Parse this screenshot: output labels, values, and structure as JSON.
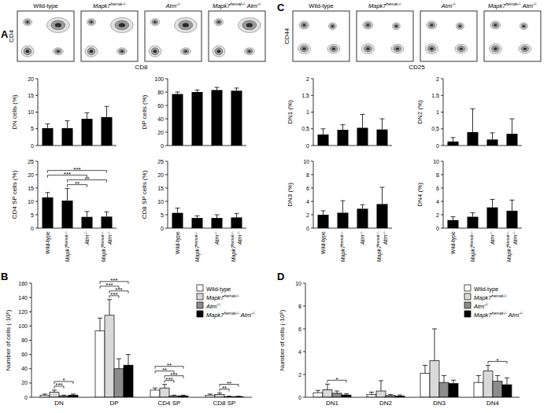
{
  "panels": [
    "A",
    "B",
    "C",
    "D"
  ],
  "dot_plots": [
    {
      "titles": [
        "Wild-type",
        "Mapk7hemat-/-",
        "Atm-/-",
        "Mapk7hemat-/- Atm-/-"
      ],
      "x_label": "CD8",
      "y_label": "CD4"
    },
    {
      "titles": [
        "Wild-type",
        "Mapk7hemat-/-",
        "Atm-/-",
        "Mapk7hemat-/- Atm-/-"
      ],
      "x_label": "CD25",
      "y_label": "CD44"
    }
  ],
  "chart_data": [
    {
      "type": "bar",
      "y_label": "DN cells (%)",
      "categories": [
        null,
        null,
        null,
        null
      ],
      "color": "#000000",
      "values": [
        5.2,
        5.2,
        8.0,
        8.5
      ],
      "errors": [
        1.3,
        2.2,
        1.8,
        3.2
      ],
      "ylim": [
        0,
        20
      ],
      "yticks": [
        0,
        5,
        10,
        15,
        20
      ],
      "significance": []
    },
    {
      "type": "bar",
      "y_label": "DP cells (%)",
      "categories": [
        null,
        null,
        null,
        null
      ],
      "color": "#000000",
      "values": [
        77,
        80,
        83,
        82
      ],
      "errors": [
        3,
        3,
        4,
        4
      ],
      "ylim": [
        0,
        100
      ],
      "yticks": [
        0,
        20,
        40,
        60,
        80,
        100
      ],
      "significance": []
    },
    {
      "type": "bar",
      "y_label": "CD4 SP cells (%)",
      "categories": [
        "Wild-type",
        "Mapk7hemat-/-",
        "Atm-/-",
        "Mapk7hemat-/- Atm-/-"
      ],
      "color": "#000000",
      "values": [
        11.5,
        10.3,
        4.2,
        4.3
      ],
      "errors": [
        1.8,
        4.5,
        2.0,
        1.8
      ],
      "ylim": [
        0,
        25
      ],
      "yticks": [
        0,
        5,
        10,
        15,
        20,
        25
      ],
      "significance": [
        {
          "from": 1,
          "to": 2,
          "label": "**"
        },
        {
          "from": 1,
          "to": 3,
          "label": "**"
        },
        {
          "from": 0,
          "to": 2,
          "label": "***"
        },
        {
          "from": 0,
          "to": 3,
          "label": "***"
        }
      ]
    },
    {
      "type": "bar",
      "y_label": "CD8 SP cells (%)",
      "categories": [
        "Wild-type",
        "Mapk7hemat-/-",
        "Atm-/-",
        "Mapk7hemat-/- Atm-/-"
      ],
      "color": "#000000",
      "values": [
        5.7,
        3.8,
        3.8,
        4.0
      ],
      "errors": [
        1.8,
        0.8,
        1.2,
        1.5
      ],
      "ylim": [
        0,
        25
      ],
      "yticks": [
        0,
        5,
        10,
        15,
        20,
        25
      ],
      "significance": []
    },
    {
      "type": "bar",
      "y_label": "Number of cells (·10⁶)",
      "categories": [
        "DN",
        "DP",
        "CD4 SP",
        "CD8 SP"
      ],
      "legend": "upper right",
      "ylim": [
        0,
        160
      ],
      "yticks": [
        0,
        20,
        40,
        60,
        80,
        100,
        120,
        140,
        160
      ],
      "series": [
        {
          "name": "Wild-type",
          "color": "#ffffff",
          "values": [
            3,
            93,
            10,
            3
          ],
          "errors": [
            1.5,
            18,
            3,
            1.5
          ]
        },
        {
          "name": "Mapk7hemat-/-",
          "color": "#d9d9d9",
          "values": [
            7,
            115,
            13,
            4
          ],
          "errors": [
            3,
            22,
            5,
            2
          ]
        },
        {
          "name": "Atm-/-",
          "color": "#8c8c8c",
          "values": [
            2,
            40,
            2,
            1
          ],
          "errors": [
            1,
            14,
            1,
            0.5
          ]
        },
        {
          "name": "Mapk7hemat-/- Atm-/-",
          "color": "#000000",
          "values": [
            3,
            45,
            2,
            1
          ],
          "errors": [
            1.5,
            15,
            1,
            0.5
          ]
        }
      ],
      "significance": [
        {
          "category": 0,
          "from": 1,
          "to": 2,
          "label": "***"
        },
        {
          "category": 0,
          "from": 1,
          "to": 3,
          "label": "*"
        },
        {
          "category": 1,
          "from": 1,
          "to": 2,
          "label": "***"
        },
        {
          "category": 1,
          "from": 1,
          "to": 3,
          "label": "***"
        },
        {
          "category": 1,
          "from": 0,
          "to": 2,
          "label": "***"
        },
        {
          "category": 1,
          "from": 0,
          "to": 3,
          "label": "***"
        },
        {
          "category": 2,
          "from": 1,
          "to": 2,
          "label": "***"
        },
        {
          "category": 2,
          "from": 1,
          "to": 3,
          "label": "***"
        },
        {
          "category": 2,
          "from": 0,
          "to": 2,
          "label": "**"
        },
        {
          "category": 2,
          "from": 0,
          "to": 3,
          "label": "**"
        },
        {
          "category": 3,
          "from": 1,
          "to": 2,
          "label": "**"
        },
        {
          "category": 3,
          "from": 1,
          "to": 3,
          "label": "**"
        }
      ]
    },
    {
      "type": "bar",
      "y_label": "DN1 (%)",
      "categories": [
        null,
        null,
        null,
        null
      ],
      "color": "#000000",
      "values": [
        0.33,
        0.47,
        0.53,
        0.48
      ],
      "errors": [
        0.17,
        0.15,
        0.4,
        0.32
      ],
      "ylim": [
        0,
        2
      ],
      "yticks": [
        0,
        {
          "value": 0.5,
          "label": "0,5"
        },
        1,
        {
          "value": 1.5,
          "label": "1,5"
        },
        2
      ],
      "significance": []
    },
    {
      "type": "bar",
      "y_label": "DN2 (%)",
      "categories": [
        null,
        null,
        null,
        null
      ],
      "color": "#000000",
      "values": [
        0.12,
        0.4,
        0.18,
        0.35
      ],
      "errors": [
        0.12,
        0.7,
        0.2,
        0.45
      ],
      "ylim": [
        0,
        2
      ],
      "yticks": [
        0,
        {
          "value": 0.5,
          "label": "0,5"
        },
        1,
        {
          "value": 1.5,
          "label": "1,5"
        },
        2
      ],
      "significance": []
    },
    {
      "type": "bar",
      "y_label": "DN3 (%)",
      "categories": [
        "Wild-type",
        "Mapk7hemat-/-",
        "Atm-/-",
        "Mapk7hemat-/- Atm-/-"
      ],
      "color": "#000000",
      "values": [
        2.0,
        2.3,
        2.9,
        3.6
      ],
      "errors": [
        0.6,
        1.8,
        0.6,
        2.5
      ],
      "ylim": [
        0,
        10
      ],
      "yticks": [
        0,
        2,
        4,
        6,
        8,
        10
      ],
      "significance": []
    },
    {
      "type": "bar",
      "y_label": "DN4 (%)",
      "categories": [
        "Wild-type",
        "Mapk7hemat-/-",
        "Atm-/-",
        "Mapk7hemat-/- Atm-/-"
      ],
      "color": "#000000",
      "values": [
        1.2,
        1.7,
        3.1,
        2.6
      ],
      "errors": [
        0.5,
        0.6,
        1.2,
        1.6
      ],
      "ylim": [
        0,
        10
      ],
      "yticks": [
        0,
        2,
        4,
        6,
        8,
        10
      ],
      "significance": []
    },
    {
      "type": "bar",
      "y_label": "Number of cells (·10⁶)",
      "categories": [
        "DN1",
        "DN2",
        "DN3",
        "DN4"
      ],
      "legend": "upper right",
      "ylim": [
        0,
        10
      ],
      "yticks": [
        0,
        2,
        4,
        6,
        8,
        10
      ],
      "series": [
        {
          "name": "Wild-type",
          "color": "#ffffff",
          "values": [
            0.4,
            0.25,
            2.1,
            1.3
          ],
          "errors": [
            0.2,
            0.2,
            0.7,
            0.6
          ]
        },
        {
          "name": "Mapk7hemat-/-",
          "color": "#d9d9d9",
          "values": [
            0.65,
            0.55,
            3.2,
            2.3
          ],
          "errors": [
            0.5,
            0.9,
            2.8,
            0.5
          ]
        },
        {
          "name": "Atm-/-",
          "color": "#8c8c8c",
          "values": [
            0.35,
            0.15,
            1.3,
            1.4
          ],
          "errors": [
            0.2,
            0.1,
            0.6,
            0.5
          ]
        },
        {
          "name": "Mapk7hemat-/- Atm-/-",
          "color": "#000000",
          "values": [
            0.2,
            0.1,
            1.2,
            1.1
          ],
          "errors": [
            0.1,
            0.1,
            0.3,
            0.6
          ]
        }
      ],
      "significance": [
        {
          "category": 0,
          "from": 1,
          "to": 3,
          "label": "*"
        },
        {
          "category": 3,
          "from": 1,
          "to": 3,
          "label": "*"
        }
      ]
    }
  ]
}
